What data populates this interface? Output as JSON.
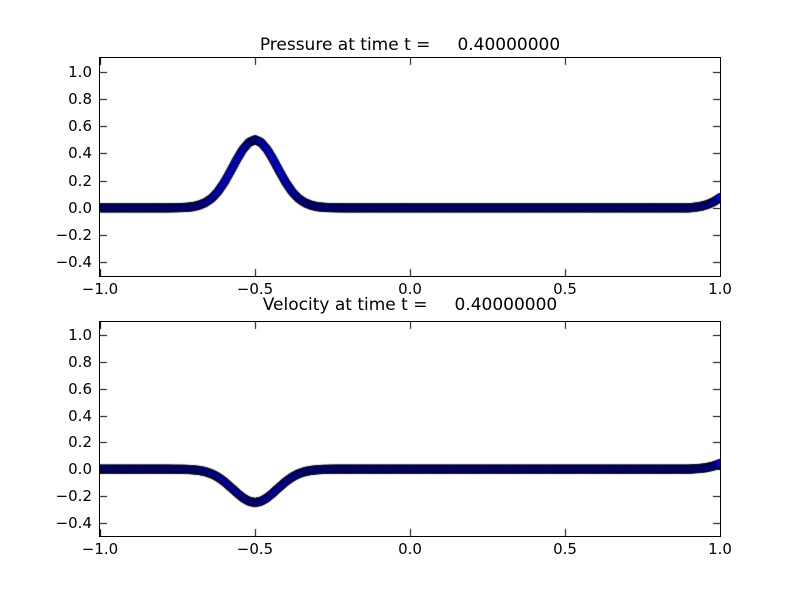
{
  "figure": {
    "background": "#ffffff",
    "frame_color": "#000000",
    "tick_color": "#000000",
    "text_color": "#000000"
  },
  "chart_data": [
    {
      "type": "line",
      "title": "Pressure at time t =     0.40000000",
      "xlabel": "",
      "ylabel": "",
      "xlim": [
        -1.0,
        1.0
      ],
      "ylim": [
        -0.5,
        1.1
      ],
      "xticks": [
        -1.0,
        -0.5,
        0.0,
        0.5,
        1.0
      ],
      "xtick_labels": [
        "−1.0",
        "−0.5",
        "0.0",
        "0.5",
        "1.0"
      ],
      "yticks": [
        1.0,
        0.8,
        0.6,
        0.4,
        0.2,
        0.0,
        -0.2,
        -0.4
      ],
      "ytick_labels": [
        "1.0",
        "0.8",
        "0.6",
        "0.4",
        "0.2",
        "0.0",
        "−0.2",
        "−0.4"
      ],
      "grid": false,
      "legend": null,
      "marker": "circle",
      "marker_color": "#0000ff",
      "marker_edge_color": "#000000",
      "series": [
        {
          "name": "pressure",
          "points": [
            [
              -1.0,
              0
            ],
            [
              -0.78,
              0
            ],
            [
              -0.76,
              0.001
            ],
            [
              -0.74,
              0.002
            ],
            [
              -0.72,
              0.004
            ],
            [
              -0.7,
              0.009
            ],
            [
              -0.68,
              0.02
            ],
            [
              -0.66,
              0.039
            ],
            [
              -0.64,
              0.07
            ],
            [
              -0.62,
              0.118
            ],
            [
              -0.6,
              0.184
            ],
            [
              -0.58,
              0.264
            ],
            [
              -0.56,
              0.349
            ],
            [
              -0.54,
              0.426
            ],
            [
              -0.52,
              0.48
            ],
            [
              -0.5,
              0.5
            ],
            [
              -0.48,
              0.48
            ],
            [
              -0.46,
              0.426
            ],
            [
              -0.44,
              0.349
            ],
            [
              -0.42,
              0.264
            ],
            [
              -0.4,
              0.184
            ],
            [
              -0.38,
              0.118
            ],
            [
              -0.36,
              0.07
            ],
            [
              -0.34,
              0.039
            ],
            [
              -0.32,
              0.02
            ],
            [
              -0.3,
              0.009
            ],
            [
              -0.28,
              0.004
            ],
            [
              -0.26,
              0.002
            ],
            [
              -0.24,
              0.001
            ],
            [
              -0.22,
              0
            ],
            [
              0.9,
              0
            ],
            [
              0.92,
              0.005
            ],
            [
              0.94,
              0.012
            ],
            [
              0.96,
              0.025
            ],
            [
              0.98,
              0.045
            ],
            [
              1.0,
              0.075
            ]
          ]
        }
      ]
    },
    {
      "type": "line",
      "title": "Velocity at time t =     0.40000000",
      "xlabel": "",
      "ylabel": "",
      "xlim": [
        -1.0,
        1.0
      ],
      "ylim": [
        -0.5,
        1.1
      ],
      "xticks": [
        -1.0,
        -0.5,
        0.0,
        0.5,
        1.0
      ],
      "xtick_labels": [
        "−1.0",
        "−0.5",
        "0.0",
        "0.5",
        "1.0"
      ],
      "yticks": [
        1.0,
        0.8,
        0.6,
        0.4,
        0.2,
        0.0,
        -0.2,
        -0.4
      ],
      "ytick_labels": [
        "1.0",
        "0.8",
        "0.6",
        "0.4",
        "0.2",
        "0.0",
        "−0.2",
        "−0.4"
      ],
      "grid": false,
      "legend": null,
      "marker": "circle",
      "marker_color": "#0000ff",
      "marker_edge_color": "#000000",
      "series": [
        {
          "name": "velocity",
          "points": [
            [
              -1.0,
              0
            ],
            [
              -0.78,
              0
            ],
            [
              -0.76,
              -0.001
            ],
            [
              -0.74,
              -0.001
            ],
            [
              -0.72,
              -0.002
            ],
            [
              -0.7,
              -0.005
            ],
            [
              -0.68,
              -0.01
            ],
            [
              -0.66,
              -0.019
            ],
            [
              -0.64,
              -0.035
            ],
            [
              -0.62,
              -0.059
            ],
            [
              -0.6,
              -0.092
            ],
            [
              -0.58,
              -0.132
            ],
            [
              -0.56,
              -0.174
            ],
            [
              -0.54,
              -0.213
            ],
            [
              -0.52,
              -0.24
            ],
            [
              -0.5,
              -0.25
            ],
            [
              -0.48,
              -0.24
            ],
            [
              -0.46,
              -0.213
            ],
            [
              -0.44,
              -0.174
            ],
            [
              -0.42,
              -0.132
            ],
            [
              -0.4,
              -0.092
            ],
            [
              -0.38,
              -0.059
            ],
            [
              -0.36,
              -0.035
            ],
            [
              -0.34,
              -0.019
            ],
            [
              -0.32,
              -0.01
            ],
            [
              -0.3,
              -0.005
            ],
            [
              -0.28,
              -0.002
            ],
            [
              -0.26,
              -0.001
            ],
            [
              -0.24,
              0
            ],
            [
              0.9,
              0
            ],
            [
              0.92,
              0.003
            ],
            [
              0.94,
              0.006
            ],
            [
              0.96,
              0.013
            ],
            [
              0.98,
              0.024
            ],
            [
              1.0,
              0.042
            ]
          ]
        }
      ]
    }
  ]
}
